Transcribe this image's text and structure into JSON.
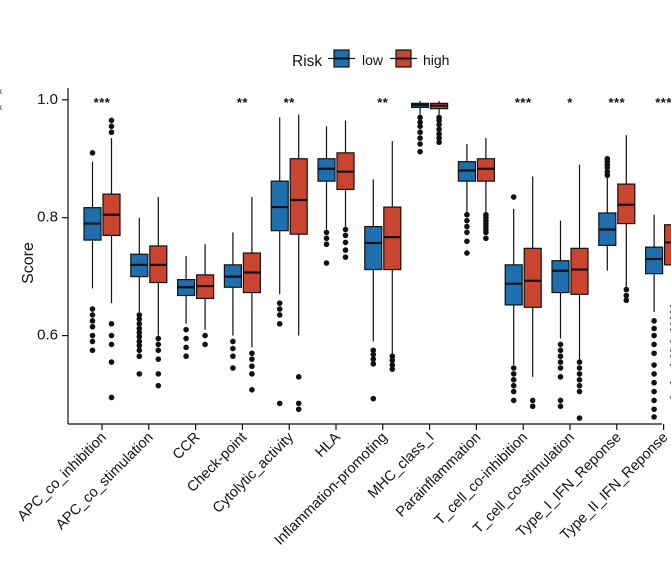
{
  "chart_data": {
    "type": "boxplot",
    "title": "",
    "xlabel": "",
    "ylabel": "Score",
    "ylim": [
      0.45,
      1.02
    ],
    "yticks": [
      0.6,
      0.8,
      1.0
    ],
    "ytick_labels": [
      "0.6",
      "0.8",
      "1.0"
    ],
    "legend": {
      "title": "Risk",
      "position": "top",
      "entries": [
        {
          "name": "low",
          "color": "#1f6fae"
        },
        {
          "name": "high",
          "color": "#c9452f"
        }
      ]
    },
    "edge_fragments": [
      "k",
      "k"
    ],
    "categories": [
      "APC_co_inhibition",
      "APC_co_stimulation",
      "CCR",
      "Check-point",
      "Cytolytic_activity",
      "HLA",
      "Inflammation-promoting",
      "MHC_class_I",
      "Parainflammation",
      "T_cell_co-inhibition",
      "T_cell_co-stimulation",
      "Type_I_IFN_Reponse",
      "Type_II_IFN_Reponse"
    ],
    "significance": [
      "***",
      "",
      "",
      "**",
      "**",
      "",
      "**",
      "",
      "",
      "***",
      "*",
      "***",
      "***"
    ],
    "series": [
      {
        "name": "low",
        "color": "#1f6fae",
        "boxes": [
          {
            "whislo": 0.68,
            "q1": 0.762,
            "med": 0.79,
            "q3": 0.817,
            "whishi": 0.895,
            "fliers": [
              0.91,
              0.645,
              0.635,
              0.625,
              0.615,
              0.6,
              0.59,
              0.575
            ]
          },
          {
            "whislo": 0.64,
            "q1": 0.7,
            "med": 0.72,
            "q3": 0.738,
            "whishi": 0.8,
            "fliers": [
              0.635,
              0.628,
              0.62,
              0.612,
              0.605,
              0.598,
              0.59,
              0.583,
              0.575,
              0.565,
              0.535
            ]
          },
          {
            "whislo": 0.62,
            "q1": 0.668,
            "med": 0.682,
            "q3": 0.695,
            "whishi": 0.735,
            "fliers": [
              0.61,
              0.595,
              0.58,
              0.565
            ]
          },
          {
            "whislo": 0.6,
            "q1": 0.682,
            "med": 0.7,
            "q3": 0.72,
            "whishi": 0.775,
            "fliers": [
              0.59,
              0.578,
              0.565,
              0.545
            ]
          },
          {
            "whislo": 0.67,
            "q1": 0.778,
            "med": 0.818,
            "q3": 0.862,
            "whishi": 0.97,
            "fliers": [
              0.655,
              0.645,
              0.635,
              0.62,
              0.485
            ]
          },
          {
            "whislo": 0.78,
            "q1": 0.862,
            "med": 0.883,
            "q3": 0.9,
            "whishi": 0.955,
            "fliers": [
              0.775,
              0.765,
              0.755,
              0.723
            ]
          },
          {
            "whislo": 0.59,
            "q1": 0.712,
            "med": 0.757,
            "q3": 0.785,
            "whishi": 0.865,
            "fliers": [
              0.575,
              0.568,
              0.56,
              0.552,
              0.493
            ]
          },
          {
            "whislo": 0.975,
            "q1": 0.987,
            "med": 0.991,
            "q3": 0.994,
            "whishi": 0.998,
            "fliers": [
              0.97,
              0.962,
              0.955,
              0.945,
              0.935,
              0.925,
              0.912
            ]
          },
          {
            "whislo": 0.81,
            "q1": 0.862,
            "med": 0.88,
            "q3": 0.895,
            "whishi": 0.925,
            "fliers": [
              0.805,
              0.795,
              0.785,
              0.775,
              0.76,
              0.74
            ]
          },
          {
            "whislo": 0.55,
            "q1": 0.652,
            "med": 0.688,
            "q3": 0.72,
            "whishi": 0.815,
            "fliers": [
              0.835,
              0.545,
              0.535,
              0.525,
              0.515,
              0.505,
              0.49
            ]
          },
          {
            "whislo": 0.595,
            "q1": 0.673,
            "med": 0.71,
            "q3": 0.727,
            "whishi": 0.795,
            "fliers": [
              0.585,
              0.575,
              0.565,
              0.555,
              0.545,
              0.53,
              0.49,
              0.48
            ]
          },
          {
            "whislo": 0.71,
            "q1": 0.753,
            "med": 0.78,
            "q3": 0.808,
            "whishi": 0.87,
            "fliers": [
              0.9,
              0.895,
              0.89,
              0.885,
              0.878,
              0.872
            ]
          },
          {
            "whislo": 0.64,
            "q1": 0.705,
            "med": 0.73,
            "q3": 0.75,
            "whishi": 0.805,
            "fliers": [
              0.625,
              0.612,
              0.6,
              0.585,
              0.57,
              0.55,
              0.535,
              0.52,
              0.505,
              0.49,
              0.475,
              0.462
            ]
          }
        ]
      },
      {
        "name": "high",
        "color": "#c9452f",
        "boxes": [
          {
            "whislo": 0.655,
            "q1": 0.77,
            "med": 0.805,
            "q3": 0.84,
            "whishi": 0.935,
            "fliers": [
              0.965,
              0.955,
              0.945,
              0.62,
              0.6,
              0.585,
              0.555,
              0.495
            ]
          },
          {
            "whislo": 0.6,
            "q1": 0.69,
            "med": 0.72,
            "q3": 0.752,
            "whishi": 0.835,
            "fliers": [
              0.595,
              0.585,
              0.575,
              0.56,
              0.535,
              0.515
            ]
          },
          {
            "whislo": 0.61,
            "q1": 0.663,
            "med": 0.684,
            "q3": 0.703,
            "whishi": 0.755,
            "fliers": [
              0.6,
              0.585
            ]
          },
          {
            "whislo": 0.58,
            "q1": 0.673,
            "med": 0.707,
            "q3": 0.74,
            "whishi": 0.835,
            "fliers": [
              0.57,
              0.56,
              0.548,
              0.535,
              0.508
            ]
          },
          {
            "whislo": 0.6,
            "q1": 0.772,
            "med": 0.83,
            "q3": 0.9,
            "whishi": 0.975,
            "fliers": [
              0.53,
              0.485,
              0.475
            ]
          },
          {
            "whislo": 0.785,
            "q1": 0.848,
            "med": 0.878,
            "q3": 0.91,
            "whishi": 0.965,
            "fliers": [
              0.78,
              0.77,
              0.758,
              0.745,
              0.733
            ]
          },
          {
            "whislo": 0.57,
            "q1": 0.712,
            "med": 0.767,
            "q3": 0.818,
            "whishi": 0.93,
            "fliers": [
              0.565,
              0.558,
              0.55,
              0.543
            ]
          },
          {
            "whislo": 0.975,
            "q1": 0.985,
            "med": 0.99,
            "q3": 0.994,
            "whishi": 0.998,
            "fliers": [
              0.97,
              0.965,
              0.958,
              0.95,
              0.942,
              0.935,
              0.928
            ]
          },
          {
            "whislo": 0.81,
            "q1": 0.862,
            "med": 0.883,
            "q3": 0.9,
            "whishi": 0.935,
            "fliers": [
              0.805,
              0.8,
              0.795,
              0.79,
              0.785,
              0.78,
              0.775,
              0.765
            ]
          },
          {
            "whislo": 0.53,
            "q1": 0.648,
            "med": 0.693,
            "q3": 0.748,
            "whishi": 0.87,
            "fliers": [
              0.49,
              0.48
            ]
          },
          {
            "whislo": 0.56,
            "q1": 0.67,
            "med": 0.712,
            "q3": 0.748,
            "whishi": 0.89,
            "fliers": [
              0.555,
              0.545,
              0.535,
              0.525,
              0.515,
              0.505,
              0.46
            ]
          },
          {
            "whislo": 0.68,
            "q1": 0.79,
            "med": 0.822,
            "q3": 0.857,
            "whishi": 0.94,
            "fliers": [
              0.678,
              0.668,
              0.66
            ]
          },
          {
            "whislo": 0.67,
            "q1": 0.72,
            "med": 0.758,
            "q3": 0.788,
            "whishi": 0.9,
            "fliers": [
              0.65,
              0.64,
              0.63,
              0.62,
              0.61,
              0.59,
              0.575,
              0.565,
              0.55,
              0.52,
              0.495
            ]
          }
        ]
      }
    ]
  }
}
